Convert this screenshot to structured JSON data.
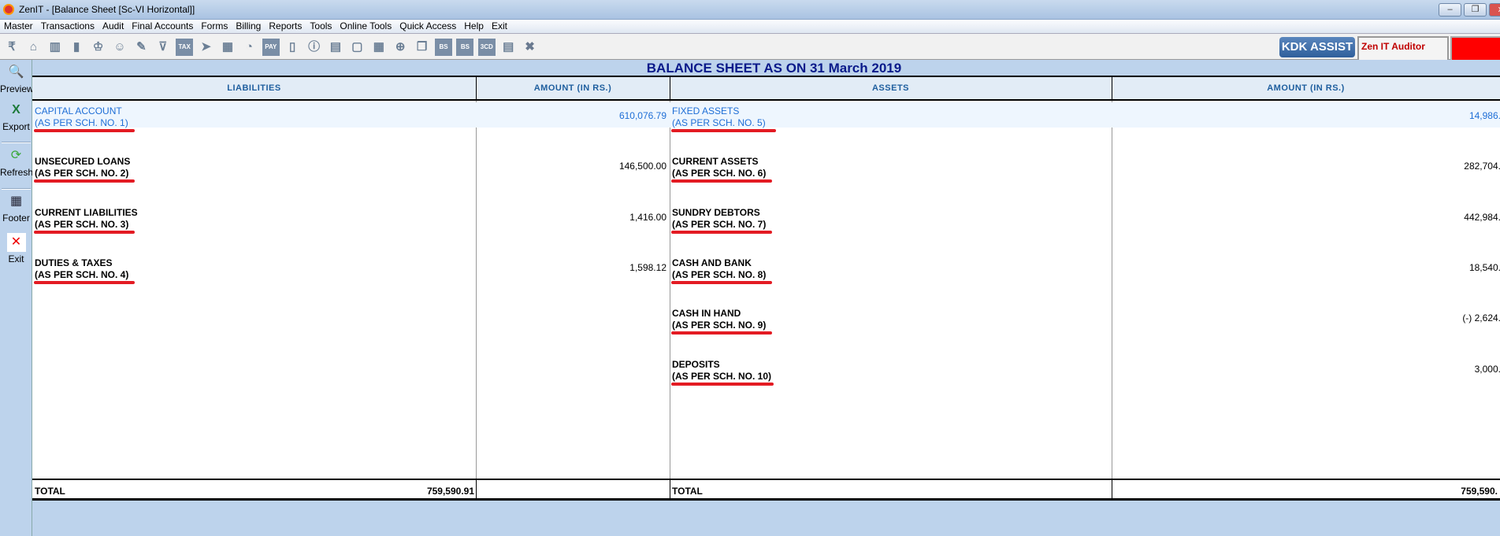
{
  "window": {
    "title": "ZenIT - [Balance Sheet [Sc-VI  Horizontal]]"
  },
  "menu": [
    "Master",
    "Transactions",
    "Audit",
    "Final Accounts",
    "Forms",
    "Billing",
    "Reports",
    "Tools",
    "Online Tools",
    "Quick Access",
    "Help",
    "Exit"
  ],
  "toolbar": {
    "icons": [
      "rupee-book",
      "home",
      "building",
      "bar-chart",
      "gift",
      "users",
      "pin",
      "filter",
      "tax",
      "arrow-circle",
      "calculator",
      "pie",
      "e-pay",
      "tablet",
      "info",
      "report",
      "user-doc",
      "calendar",
      "folder-add",
      "copy",
      "bs",
      "bs-sch",
      "3cd",
      "form",
      "close-circle"
    ],
    "icon_text": {
      "tax": "TAX",
      "e-pay": "PAY",
      "bs": "BS",
      "bs-sch": "BS",
      "3cd": "3CD"
    },
    "kdk_label": "KDK ASSIST",
    "auditor_label": "Zen IT Auditor"
  },
  "sidebar": [
    "Preview",
    "Export",
    "Refresh",
    "Footer",
    "Exit"
  ],
  "heading": "BALANCE SHEET AS ON 31 March 2019",
  "columns": {
    "liabilities": "LIABILITIES",
    "amount1": "AMOUNT (IN RS.)",
    "assets": "ASSETS",
    "amount2": "AMOUNT (IN RS.)"
  },
  "liabilities": [
    {
      "name": "CAPITAL ACCOUNT",
      "sch": "(AS PER SCH. NO. 1)",
      "amount": "610,076.79"
    },
    {
      "name": "UNSECURED LOANS",
      "sch": "(AS PER SCH. NO. 2)",
      "amount": "146,500.00"
    },
    {
      "name": "CURRENT LIABILITIES",
      "sch": "(AS PER SCH. NO. 3)",
      "amount": "1,416.00"
    },
    {
      "name": "DUTIES & TAXES",
      "sch": "(AS PER SCH. NO. 4)",
      "amount": "1,598.12"
    }
  ],
  "assets": [
    {
      "name": "FIXED ASSETS",
      "sch": "(AS PER SCH. NO. 5)",
      "amount": "14,986."
    },
    {
      "name": "CURRENT ASSETS",
      "sch": "(AS PER SCH. NO. 6)",
      "amount": "282,704."
    },
    {
      "name": "SUNDRY DEBTORS",
      "sch": "(AS PER SCH. NO. 7)",
      "amount": "442,984."
    },
    {
      "name": "CASH AND BANK",
      "sch": "(AS PER SCH. NO. 8)",
      "amount": "18,540."
    },
    {
      "name": "CASH IN HAND",
      "sch": "(AS PER SCH. NO. 9)",
      "amount": "(-) 2,624."
    },
    {
      "name": "DEPOSITS",
      "sch": "(AS PER SCH. NO. 10)",
      "amount": "3,000."
    }
  ],
  "totals": {
    "label_left": "TOTAL",
    "amount_left": "759,590.91",
    "label_right": "TOTAL",
    "amount_right": "759,590."
  },
  "colors": {
    "heading": "#0a1a8a",
    "highlight_text": "#1e6ed6",
    "underline": "#e31b23",
    "background": "#bdd3ec"
  }
}
